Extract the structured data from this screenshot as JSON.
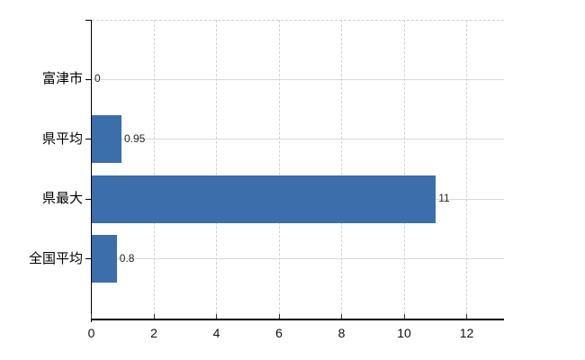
{
  "chart_data": {
    "type": "bar",
    "orientation": "horizontal",
    "title": "",
    "xlabel": "",
    "ylabel": "",
    "categories": [
      "富津市",
      "県平均",
      "県最大",
      "全国平均"
    ],
    "values": [
      0,
      0.95,
      11,
      0.8
    ],
    "value_labels": [
      "0",
      "0.95",
      "11",
      "0.8"
    ],
    "x_ticks": [
      0,
      2,
      4,
      6,
      8,
      10,
      12
    ],
    "xlim": [
      0,
      13.2
    ],
    "grid": "on",
    "legend": "none",
    "colors": {
      "bar": "#3b6eab",
      "axis": "#000000",
      "grid": "#d8d8d8",
      "grid_dashed": "#d2d2d2",
      "category_label": "#000000",
      "tick_label": "#111111",
      "value_label": "#262626"
    }
  }
}
